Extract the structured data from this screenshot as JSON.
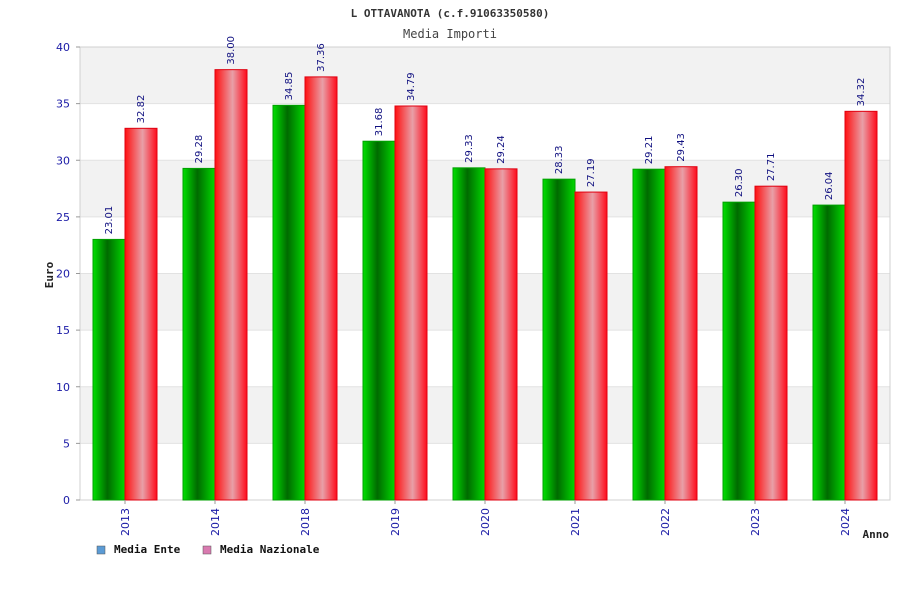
{
  "chart_data": {
    "type": "bar",
    "title": "L OTTAVANOTA (c.f.91063350580)",
    "subtitle": "Media Importi",
    "xlabel": "Anno",
    "ylabel": "Euro",
    "ylim": [
      0,
      40
    ],
    "yticks": [
      0,
      5,
      10,
      15,
      20,
      25,
      30,
      35,
      40
    ],
    "categories": [
      "2013",
      "2014",
      "2018",
      "2019",
      "2020",
      "2021",
      "2022",
      "2023",
      "2024"
    ],
    "series": [
      {
        "name": "Media Ente",
        "color": "#00c000",
        "legend_color": "#5b9bd5",
        "values": [
          23.01,
          29.28,
          34.85,
          31.68,
          29.33,
          28.33,
          29.21,
          26.3,
          26.04
        ],
        "labels": [
          "23.01",
          "29.28",
          "34.85",
          "31.68",
          "29.33",
          "28.33",
          "29.21",
          "26.30",
          "26.04"
        ]
      },
      {
        "name": "Media Nazionale",
        "color": "#ff1a1a",
        "legend_color": "#d97ab0",
        "values": [
          32.82,
          38.0,
          37.36,
          34.79,
          29.24,
          27.19,
          29.43,
          27.71,
          34.32
        ],
        "labels": [
          "32.82",
          "38.00",
          "37.36",
          "34.79",
          "29.24",
          "27.19",
          "29.43",
          "27.71",
          "34.32"
        ]
      }
    ],
    "grid": true,
    "legend_position": "bottom-left"
  }
}
